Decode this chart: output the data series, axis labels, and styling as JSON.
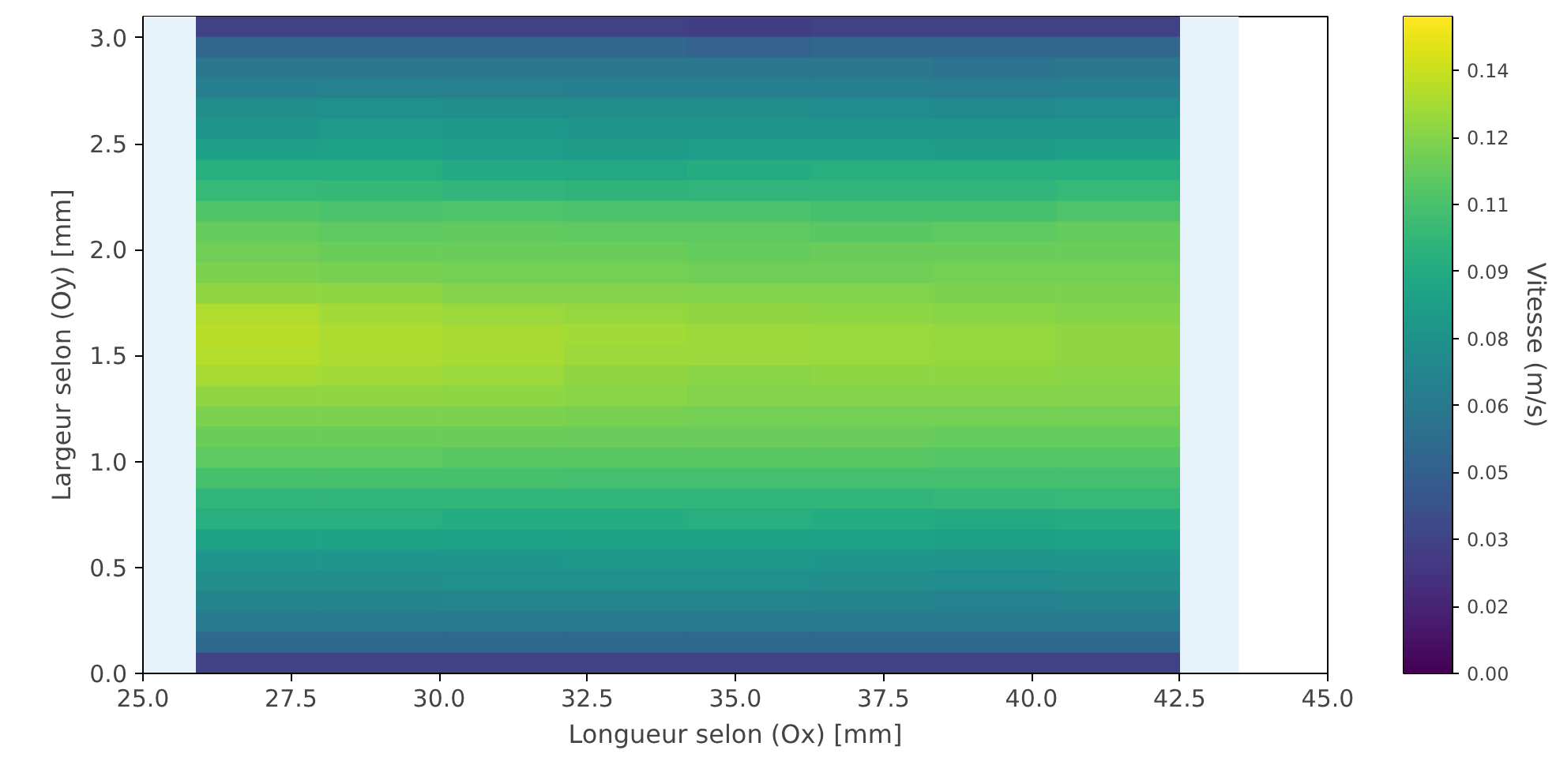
{
  "chart_data": {
    "type": "heatmap",
    "xlabel": "Longueur selon (Ox) [mm]",
    "ylabel": "Largeur selon (Oy) [mm]",
    "clabel": "Vitesse (m/s)",
    "x": [
      26.9375,
      29.0125,
      31.0875,
      33.1625,
      35.2375,
      37.3125,
      39.3875,
      41.4625
    ],
    "cells": [
      [
        0.03,
        0.03,
        0.03,
        0.03,
        0.028,
        0.03,
        0.03,
        0.03
      ],
      [
        0.05,
        0.05,
        0.05,
        0.05,
        0.048,
        0.05,
        0.05,
        0.05
      ],
      [
        0.06,
        0.06,
        0.06,
        0.06,
        0.06,
        0.06,
        0.058,
        0.06
      ],
      [
        0.065,
        0.067,
        0.066,
        0.065,
        0.065,
        0.065,
        0.064,
        0.065
      ],
      [
        0.075,
        0.076,
        0.075,
        0.075,
        0.075,
        0.074,
        0.073,
        0.074
      ],
      [
        0.08,
        0.082,
        0.081,
        0.08,
        0.08,
        0.079,
        0.079,
        0.08
      ],
      [
        0.086,
        0.087,
        0.085,
        0.084,
        0.085,
        0.085,
        0.084,
        0.086
      ],
      [
        0.096,
        0.095,
        0.093,
        0.092,
        0.094,
        0.095,
        0.095,
        0.096
      ],
      [
        0.102,
        0.101,
        0.1,
        0.099,
        0.1,
        0.1,
        0.1,
        0.102
      ],
      [
        0.111,
        0.109,
        0.11,
        0.109,
        0.109,
        0.108,
        0.108,
        0.11
      ],
      [
        0.116,
        0.114,
        0.115,
        0.114,
        0.114,
        0.113,
        0.114,
        0.116
      ],
      [
        0.119,
        0.118,
        0.118,
        0.118,
        0.116,
        0.117,
        0.118,
        0.118
      ],
      [
        0.122,
        0.121,
        0.12,
        0.12,
        0.119,
        0.119,
        0.12,
        0.12
      ],
      [
        0.127,
        0.126,
        0.124,
        0.124,
        0.123,
        0.123,
        0.122,
        0.122
      ],
      [
        0.134,
        0.131,
        0.129,
        0.128,
        0.127,
        0.126,
        0.125,
        0.124
      ],
      [
        0.136,
        0.133,
        0.132,
        0.131,
        0.13,
        0.129,
        0.128,
        0.127
      ],
      [
        0.135,
        0.133,
        0.132,
        0.13,
        0.13,
        0.129,
        0.128,
        0.127
      ],
      [
        0.132,
        0.131,
        0.129,
        0.127,
        0.125,
        0.126,
        0.126,
        0.125
      ],
      [
        0.127,
        0.127,
        0.126,
        0.125,
        0.124,
        0.124,
        0.124,
        0.124
      ],
      [
        0.122,
        0.122,
        0.122,
        0.121,
        0.12,
        0.12,
        0.12,
        0.12
      ],
      [
        0.118,
        0.118,
        0.118,
        0.117,
        0.117,
        0.117,
        0.116,
        0.116
      ],
      [
        0.114,
        0.114,
        0.113,
        0.113,
        0.113,
        0.113,
        0.112,
        0.112
      ],
      [
        0.108,
        0.108,
        0.108,
        0.107,
        0.107,
        0.107,
        0.107,
        0.107
      ],
      [
        0.1,
        0.1,
        0.1,
        0.1,
        0.1,
        0.1,
        0.101,
        0.102
      ],
      [
        0.095,
        0.095,
        0.094,
        0.094,
        0.095,
        0.094,
        0.093,
        0.094
      ],
      [
        0.088,
        0.088,
        0.087,
        0.088,
        0.088,
        0.087,
        0.086,
        0.087
      ],
      [
        0.08,
        0.08,
        0.08,
        0.081,
        0.081,
        0.08,
        0.079,
        0.08
      ],
      [
        0.075,
        0.075,
        0.076,
        0.076,
        0.076,
        0.075,
        0.074,
        0.075
      ],
      [
        0.068,
        0.068,
        0.069,
        0.069,
        0.069,
        0.068,
        0.067,
        0.068
      ],
      [
        0.062,
        0.062,
        0.062,
        0.062,
        0.063,
        0.062,
        0.062,
        0.062
      ],
      [
        0.052,
        0.052,
        0.052,
        0.052,
        0.052,
        0.052,
        0.052,
        0.052
      ],
      [
        0.03,
        0.03,
        0.03,
        0.03,
        0.03,
        0.03,
        0.03,
        0.03
      ]
    ],
    "xlim": [
      25,
      45
    ],
    "ylim": [
      0,
      3.1
    ],
    "xticks": [
      {
        "value": 25,
        "label": "25.0"
      },
      {
        "value": 27.5,
        "label": "27.5"
      },
      {
        "value": 30,
        "label": "30.0"
      },
      {
        "value": 32.5,
        "label": "32.5"
      },
      {
        "value": 35,
        "label": "35.0"
      },
      {
        "value": 37.5,
        "label": "37.5"
      },
      {
        "value": 40,
        "label": "40.0"
      },
      {
        "value": 42.5,
        "label": "42.5"
      },
      {
        "value": 45,
        "label": "45.0"
      }
    ],
    "yticks": [
      {
        "value": 0,
        "label": "0.0"
      },
      {
        "value": 0.5,
        "label": "0.5"
      },
      {
        "value": 1,
        "label": "1.0"
      },
      {
        "value": 1.5,
        "label": "1.5"
      },
      {
        "value": 2,
        "label": "2.0"
      },
      {
        "value": 2.5,
        "label": "2.5"
      },
      {
        "value": 3,
        "label": "3.0"
      }
    ],
    "clim": [
      0,
      0.152
    ],
    "cticks": [
      {
        "value": 0,
        "label": "0.00"
      },
      {
        "value": 0.0155,
        "label": "0.02"
      },
      {
        "value": 0.031,
        "label": "0.03"
      },
      {
        "value": 0.0465,
        "label": "0.05"
      },
      {
        "value": 0.062,
        "label": "0.06"
      },
      {
        "value": 0.0775,
        "label": "0.08"
      },
      {
        "value": 0.093,
        "label": "0.09"
      },
      {
        "value": 0.1085,
        "label": "0.11"
      },
      {
        "value": 0.124,
        "label": "0.12"
      },
      {
        "value": 0.1395,
        "label": "0.14"
      }
    ],
    "bands": [
      {
        "axis": "x",
        "from": 25,
        "to": 25.9,
        "color": "#e5f2fa"
      },
      {
        "axis": "x",
        "from": 42.5,
        "to": 43.5,
        "color": "#e5f2fa"
      }
    ],
    "grid": false
  }
}
